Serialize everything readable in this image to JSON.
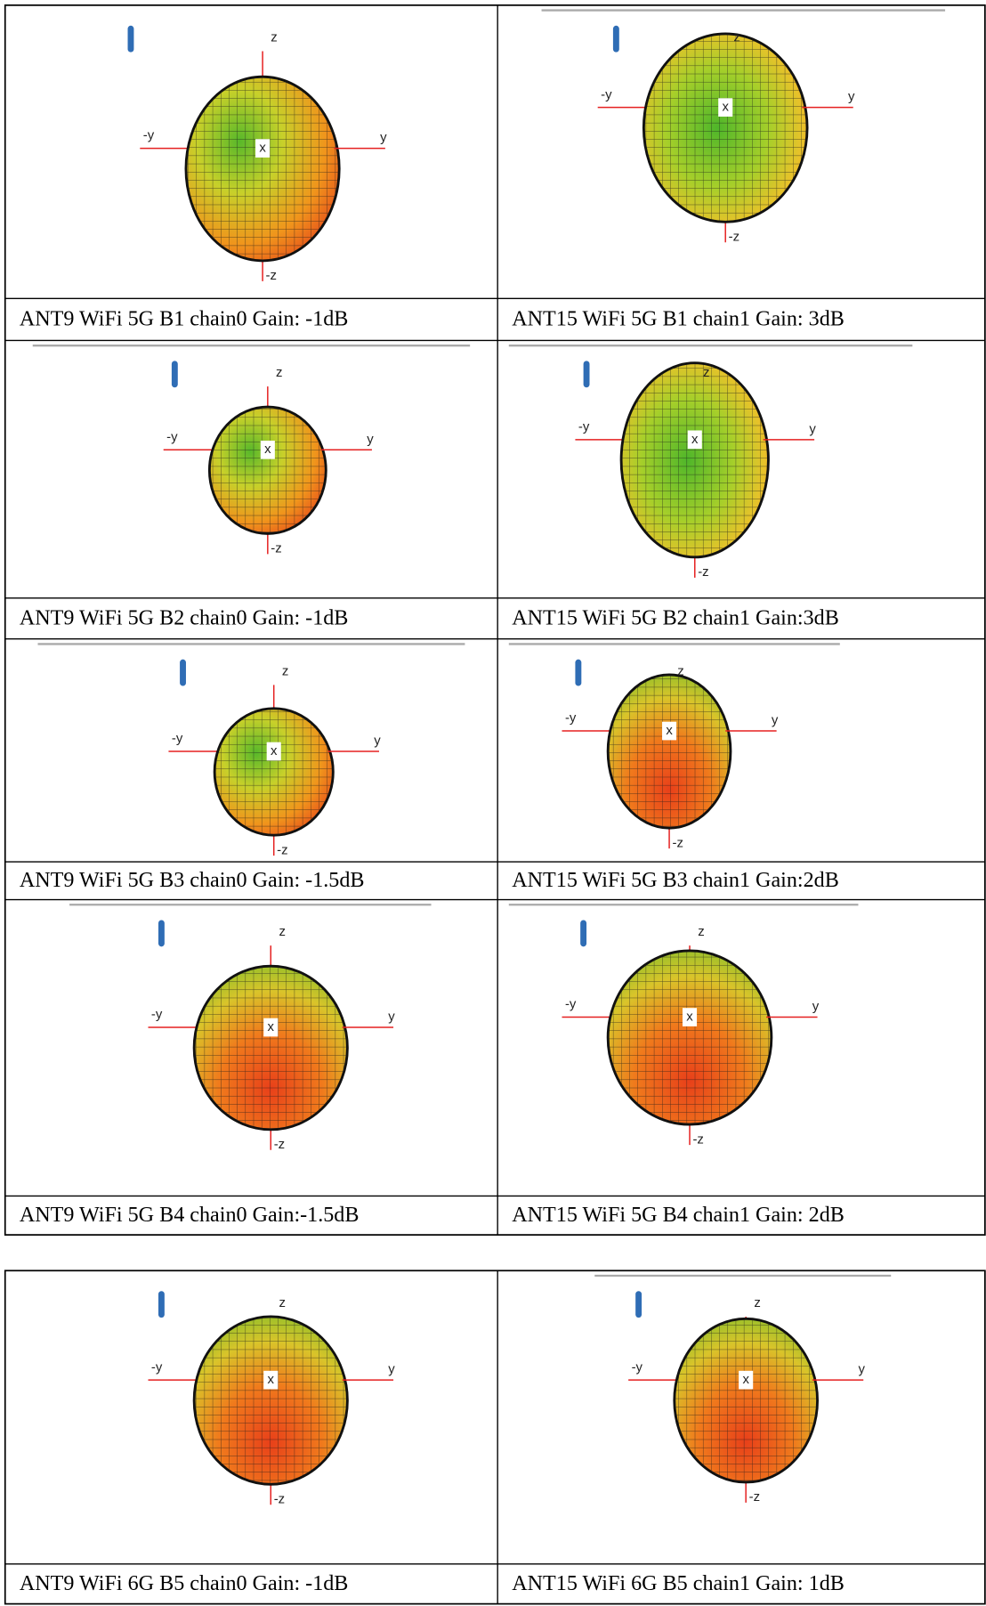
{
  "tables": [
    {
      "rows": [
        [
          "ANT9 WiFi 5G B1 chain0 Gain: -1dB",
          "ANT15 WiFi 5G B1 chain1 Gain: 3dB"
        ],
        [
          "ANT9 WiFi 5G B2 chain0 Gain: -1dB",
          "ANT15 WiFi 5G B2 chain1 Gain:3dB"
        ],
        [
          "ANT9 WiFi 5G B3 chain0 Gain: -1.5dB",
          "ANT15 WiFi 5G B3 chain1 Gain:2dB"
        ],
        [
          "ANT9 WiFi 5G B4 chain0 Gain:-1.5dB",
          "ANT15 WiFi 5G B4 chain1 Gain: 2dB"
        ]
      ]
    },
    {
      "rows": [
        [
          "ANT9 WiFi 6G B5 chain0 Gain: -1dB",
          "ANT15 WiFi 6G B5 chain1 Gain: 1dB"
        ]
      ]
    }
  ],
  "axis_labels": [
    "z",
    "-y",
    "y",
    "x",
    "-z"
  ]
}
